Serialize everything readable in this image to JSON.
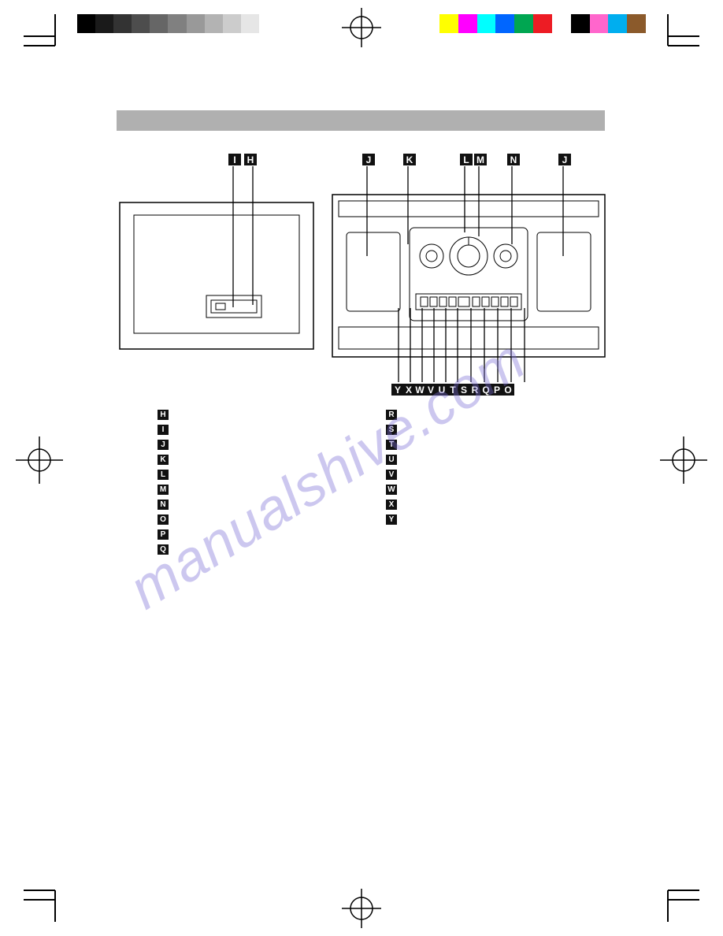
{
  "print_marks": {
    "grayscale_swatches": [
      "#000000",
      "#1a1a1a",
      "#333333",
      "#4d4d4d",
      "#666666",
      "#808080",
      "#999999",
      "#b3b3b3",
      "#cccccc",
      "#e6e6e6",
      "#ffffff"
    ],
    "color_swatches": [
      "#ffff00",
      "#ff00ff",
      "#00ffff",
      "#0066ff",
      "#00a651",
      "#ed1c24",
      "#ffffff",
      "#000000",
      "#ff66cc",
      "#00aeef",
      "#8b5a2b"
    ]
  },
  "title_bar_color": "#b0b0b0",
  "diagram": {
    "top_callouts_left": [
      "I",
      "H"
    ],
    "top_callouts_right": [
      "J",
      "K",
      "L",
      "M",
      "N",
      "J"
    ],
    "bottom_callouts": [
      "Y",
      "X",
      "W",
      "V",
      "U",
      "T",
      "S",
      "R",
      "Q",
      "P",
      "O"
    ],
    "callout_bg": "#111111",
    "callout_fg": "#ffffff",
    "left_device": {
      "type": "box-with-cassette-slot"
    },
    "right_device": {
      "type": "front-panel",
      "dials": 3,
      "button_row_count": 10
    }
  },
  "legend": {
    "left": [
      "H",
      "I",
      "J",
      "K",
      "L",
      "M",
      "N",
      "O",
      "P",
      "Q"
    ],
    "right": [
      "R",
      "S",
      "T",
      "U",
      "V",
      "W",
      "X",
      "Y"
    ]
  },
  "watermark_text": "manualshive.com",
  "watermark_color": "#7a6fd6"
}
